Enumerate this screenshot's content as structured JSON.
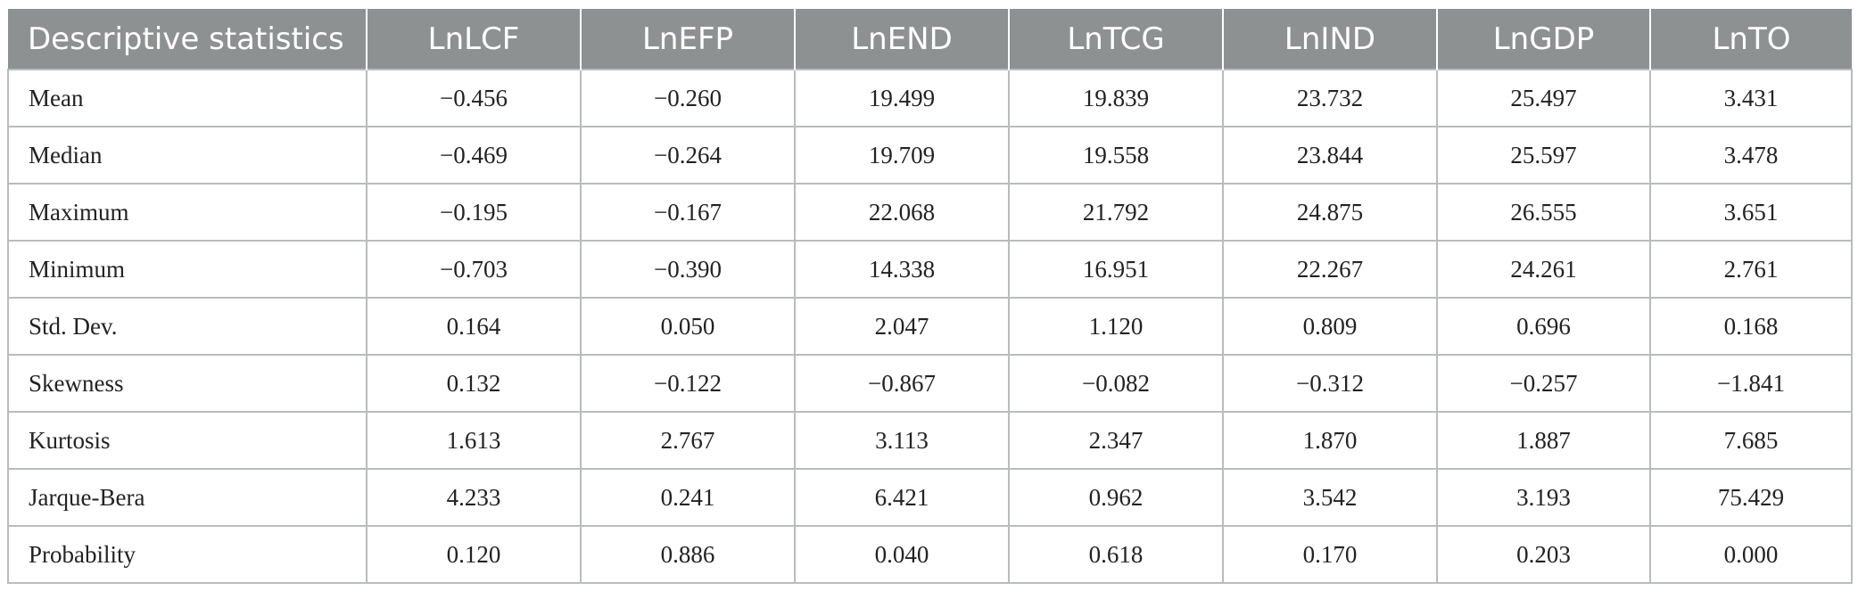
{
  "table": {
    "headers": [
      "Descriptive statistics",
      "LnLCF",
      "LnEFP",
      "LnEND",
      "LnTCG",
      "LnIND",
      "LnGDP",
      "LnTO"
    ],
    "rows": [
      {
        "label": "Mean",
        "values": [
          "−0.456",
          "−0.260",
          "19.499",
          "19.839",
          "23.732",
          "25.497",
          "3.431"
        ]
      },
      {
        "label": "Median",
        "values": [
          "−0.469",
          "−0.264",
          "19.709",
          "19.558",
          "23.844",
          "25.597",
          "3.478"
        ]
      },
      {
        "label": "Maximum",
        "values": [
          "−0.195",
          "−0.167",
          "22.068",
          "21.792",
          "24.875",
          "26.555",
          "3.651"
        ]
      },
      {
        "label": "Minimum",
        "values": [
          "−0.703",
          "−0.390",
          "14.338",
          "16.951",
          "22.267",
          "24.261",
          "2.761"
        ]
      },
      {
        "label": "Std. Dev.",
        "values": [
          "0.164",
          "0.050",
          "2.047",
          "1.120",
          "0.809",
          "0.696",
          "0.168"
        ]
      },
      {
        "label": "Skewness",
        "values": [
          "0.132",
          "−0.122",
          "−0.867",
          "−0.082",
          "−0.312",
          "−0.257",
          "−1.841"
        ]
      },
      {
        "label": "Kurtosis",
        "values": [
          "1.613",
          "2.767",
          "3.113",
          "2.347",
          "1.870",
          "1.887",
          "7.685"
        ]
      },
      {
        "label": "Jarque-Bera",
        "values": [
          "4.233",
          "0.241",
          "6.421",
          "0.962",
          "3.542",
          "3.193",
          "75.429"
        ]
      },
      {
        "label": "Probability",
        "values": [
          "0.120",
          "0.886",
          "0.040",
          "0.618",
          "0.170",
          "0.203",
          "0.000"
        ]
      }
    ]
  }
}
